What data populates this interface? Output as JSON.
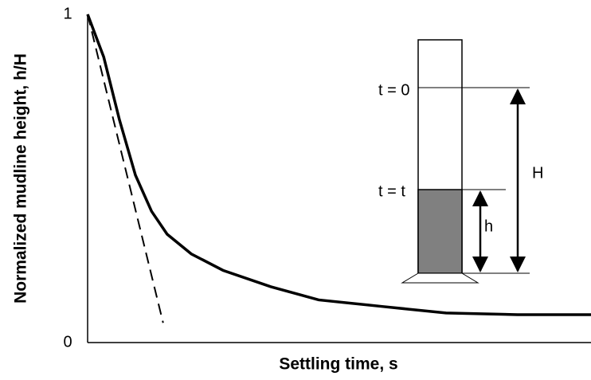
{
  "chart_data": {
    "type": "line",
    "y_label": "Normalized mudline height, h/H",
    "x_label": "Settling time, s",
    "xlim": [
      0,
      10
    ],
    "ylim": [
      0,
      1
    ],
    "yticks": [
      0,
      1
    ],
    "series": [
      {
        "color": "#000000",
        "dashed": false,
        "x": [
          0,
          0.32,
          0.63,
          0.95,
          1.27,
          1.58,
          2.06,
          2.69,
          3.64,
          4.59,
          5.85,
          7.12,
          8.54,
          10
        ],
        "values": [
          1,
          0.87,
          0.68,
          0.51,
          0.4,
          0.33,
          0.27,
          0.22,
          0.17,
          0.13,
          0.11,
          0.09,
          0.085,
          0.085
        ]
      },
      {
        "color": "#000000",
        "dashed": true,
        "x": [
          0,
          1.5
        ],
        "values": [
          1,
          0.06
        ]
      }
    ],
    "annotations": [
      "t = 0",
      "t = t",
      "H",
      "h"
    ]
  }
}
